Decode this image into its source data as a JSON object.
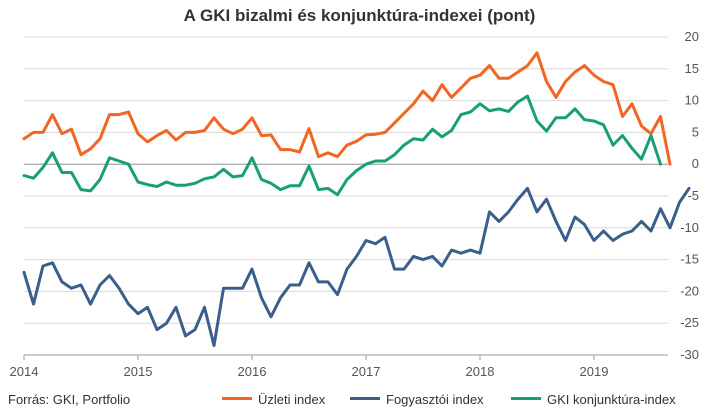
{
  "chart_data": {
    "type": "line",
    "title": "A GKI bizalmi és konjunktúra-indexei (pont)",
    "source": "Forrás: GKI, Portfolio",
    "ylim": [
      -30,
      20
    ],
    "yticks": [
      20,
      15,
      10,
      5,
      0,
      -5,
      -10,
      -15,
      -20,
      -25,
      -30
    ],
    "xticks": [
      "2014",
      "2015",
      "2016",
      "2017",
      "2018",
      "2019"
    ],
    "grid": "horizontal",
    "legend_position": "bottom",
    "x_start": "2014-01",
    "x_step": "1 month",
    "series": [
      {
        "name": "Üzleti index",
        "color": "#f26522",
        "values": [
          4,
          5,
          5,
          7.8,
          4.8,
          5.5,
          1.5,
          2.4,
          4,
          7.8,
          7.8,
          8.2,
          4.8,
          3.5,
          4.5,
          5.3,
          3.8,
          5,
          5,
          5.3,
          7.3,
          5.5,
          4.8,
          5.5,
          7.3,
          4.5,
          4.6,
          2.3,
          2.3,
          1.9,
          5.6,
          1.2,
          1.8,
          1.2,
          3,
          3.6,
          4.6,
          4.7,
          5,
          6.5,
          8,
          9.5,
          11.5,
          10,
          12.5,
          10.5,
          12,
          13.5,
          14,
          15.5,
          13.5,
          13.5,
          14.5,
          15.5,
          17.5,
          13,
          10.5,
          13,
          14.5,
          15.5,
          14,
          13,
          12.5,
          7.5,
          9.5,
          6,
          4.8,
          7.5,
          0
        ]
      },
      {
        "name": "Fogyasztói index",
        "color": "#3b5f8c",
        "values": [
          -17,
          -22,
          -16,
          -15.5,
          -18.5,
          -19.5,
          -19,
          -22,
          -19,
          -17.5,
          -19.5,
          -22,
          -23.5,
          -22.5,
          -26,
          -25,
          -22.5,
          -27,
          -26,
          -22.5,
          -28.5,
          -19.5,
          -19.5,
          -19.5,
          -16.5,
          -21,
          -24,
          -21,
          -19,
          -19,
          -15.5,
          -18.5,
          -18.5,
          -20.5,
          -16.5,
          -14.5,
          -12,
          -12.5,
          -11.5,
          -16.5,
          -16.5,
          -14.5,
          -15,
          -14.5,
          -16,
          -13.5,
          -14,
          -13.5,
          -14,
          -7.5,
          -9,
          -7.5,
          -5.5,
          -3.8,
          -7.5,
          -5.5,
          -9,
          -12,
          -8.3,
          -9.5,
          -12,
          -10.5,
          -12,
          -11,
          -10.5,
          -9,
          -10.5,
          -7,
          -10,
          -6,
          -3.8
        ]
      },
      {
        "name": "GKI konjunktúra-index",
        "color": "#17a078",
        "values": [
          -1.8,
          -2.2,
          -0.5,
          1.8,
          -1.3,
          -1.3,
          -4,
          -4.2,
          -2.4,
          1,
          0.5,
          0,
          -2.8,
          -3.2,
          -3.5,
          -2.8,
          -3.3,
          -3.3,
          -3,
          -2.3,
          -2,
          -0.8,
          -2,
          -1.8,
          1,
          -2.4,
          -3,
          -4,
          -3.4,
          -3.4,
          -0.3,
          -4,
          -3.8,
          -4.8,
          -2.4,
          -1,
          0,
          0.5,
          0.5,
          1.5,
          3,
          4,
          3.8,
          5.5,
          4.3,
          5.3,
          7.8,
          8.2,
          9.5,
          8.4,
          8.7,
          8.3,
          9.8,
          10.7,
          6.8,
          5.2,
          7.3,
          7.3,
          8.7,
          7,
          6.8,
          6.2,
          3,
          4.5,
          2.5,
          0.8,
          4.5,
          0
        ]
      }
    ]
  }
}
